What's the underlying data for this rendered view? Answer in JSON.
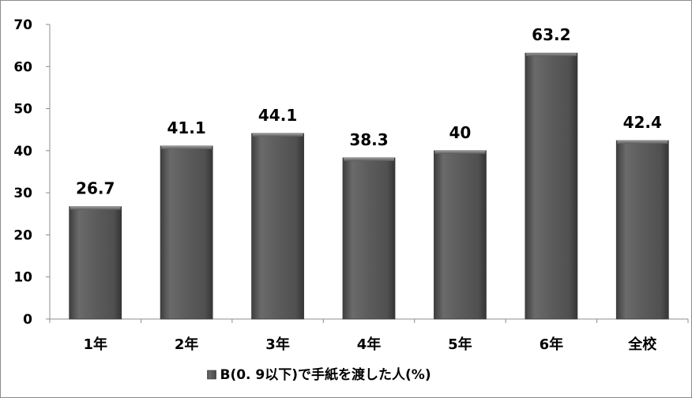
{
  "chart_data": {
    "type": "bar",
    "categories": [
      "1年",
      "2年",
      "3年",
      "4年",
      "5年",
      "6年",
      "全校"
    ],
    "series": [
      {
        "name": "B(0. 9以下)で手紙を渡した人(%)",
        "values": [
          26.7,
          41.1,
          44.1,
          38.3,
          40,
          63.2,
          42.4
        ],
        "color": "#5a5a5a"
      }
    ],
    "title": "",
    "xlabel": "",
    "ylabel": "",
    "ylim": [
      0,
      70
    ],
    "yticks": [
      0,
      10,
      20,
      30,
      40,
      50,
      60,
      70
    ],
    "grid": false,
    "legend_position": "bottom",
    "data_labels": true
  }
}
